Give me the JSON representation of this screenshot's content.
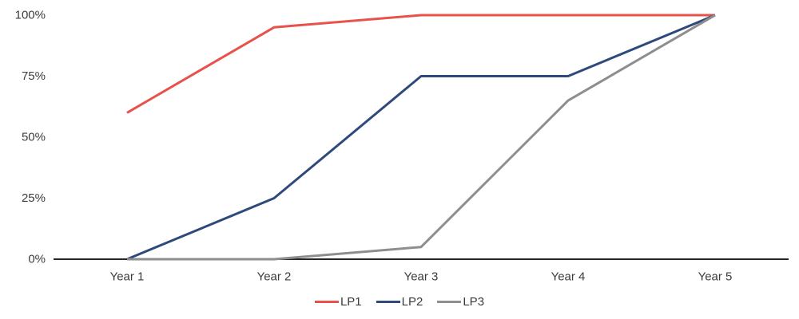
{
  "chart_data": {
    "type": "line",
    "categories": [
      "Year 1",
      "Year 2",
      "Year 3",
      "Year 4",
      "Year 5"
    ],
    "series": [
      {
        "name": "LP1",
        "color": "#e8524a",
        "values": [
          60,
          95,
          100,
          100,
          100
        ]
      },
      {
        "name": "LP2",
        "color": "#2e4a7c",
        "values": [
          0,
          25,
          75,
          75,
          100
        ]
      },
      {
        "name": "LP3",
        "color": "#8e8e8e",
        "values": [
          0,
          0,
          5,
          65,
          100
        ]
      }
    ],
    "ylim": [
      0,
      100
    ],
    "yticks": [
      0,
      25,
      50,
      75,
      100
    ],
    "ytick_labels": [
      "0%",
      "25%",
      "50%",
      "75%",
      "100%"
    ],
    "grid": false,
    "legend_position": "bottom",
    "colors": {
      "axis": "#262626",
      "tick_text": "#3c3c3c",
      "background": "#ffffff"
    }
  }
}
